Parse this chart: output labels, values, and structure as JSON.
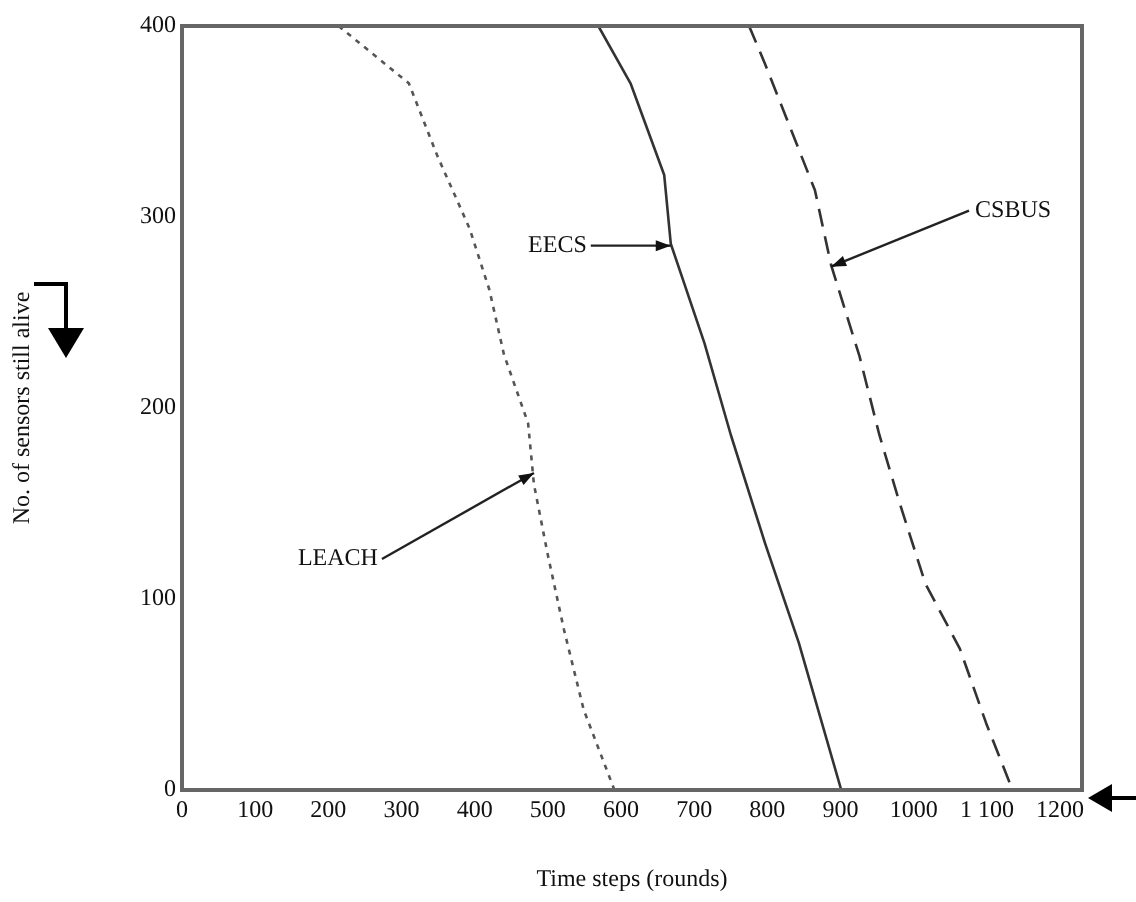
{
  "chart_data": {
    "type": "line",
    "xlabel": "Time steps (rounds)",
    "ylabel": "No. of sensors still alive",
    "xlim": [
      0,
      1230
    ],
    "ylim": [
      0,
      400
    ],
    "xticks": [
      0,
      100,
      200,
      300,
      400,
      500,
      600,
      700,
      800,
      900,
      1000,
      {
        "value": 1100,
        "label": "1 100"
      },
      1200
    ],
    "yticks": [
      0,
      100,
      200,
      300,
      400
    ],
    "grid": false,
    "legend": false,
    "marker": "none",
    "series": [
      {
        "color": "#555555",
        "line_style": "dotted",
        "x": [
          214,
          310,
          349,
          393,
          420,
          440,
          473,
          481,
          500,
          522,
          549,
          591
        ],
        "values": [
          400,
          370,
          332,
          294,
          262,
          228,
          192,
          160,
          123,
          84,
          42,
          0
        ]
      },
      {
        "color": "#333333",
        "line_style": "solid",
        "x": [
          569,
          613,
          659,
          668,
          714,
          750,
          797,
          843,
          901
        ],
        "values": [
          400,
          370,
          322,
          286,
          234,
          186,
          129,
          77,
          0
        ]
      },
      {
        "color": "#333333",
        "line_style": "dashed",
        "x": [
          775,
          797,
          832,
          865,
          887,
          926,
          953,
          981,
          1016,
          1063,
          1099,
          1135
        ],
        "values": [
          400,
          380,
          346,
          314,
          275,
          227,
          186,
          150,
          108,
          74,
          35,
          0
        ]
      }
    ],
    "annotations": [
      {
        "text": "LEACH",
        "x": 481,
        "y": 166
      },
      {
        "text": "EECS",
        "x": 668,
        "y": 285
      },
      {
        "text": "CSBUS",
        "x": 887,
        "y": 274
      }
    ]
  }
}
